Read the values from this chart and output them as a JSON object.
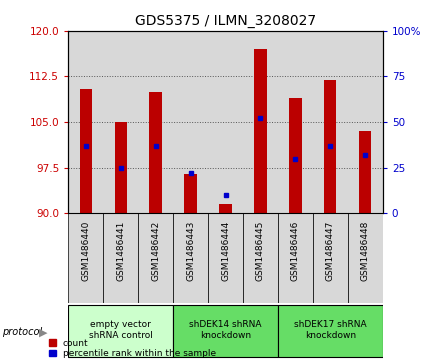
{
  "title": "GDS5375 / ILMN_3208027",
  "samples": [
    "GSM1486440",
    "GSM1486441",
    "GSM1486442",
    "GSM1486443",
    "GSM1486444",
    "GSM1486445",
    "GSM1486446",
    "GSM1486447",
    "GSM1486448"
  ],
  "counts": [
    110.5,
    105.0,
    110.0,
    96.5,
    91.5,
    117.0,
    109.0,
    112.0,
    103.5
  ],
  "percentiles": [
    37,
    25,
    37,
    22,
    10,
    52,
    30,
    37,
    32
  ],
  "ylim_left": [
    90,
    120
  ],
  "ylim_right": [
    0,
    100
  ],
  "yticks_left": [
    90,
    97.5,
    105,
    112.5,
    120
  ],
  "yticks_right": [
    0,
    25,
    50,
    75,
    100
  ],
  "bar_color": "#bb0000",
  "percentile_color": "#0000cc",
  "bar_bottom": 90,
  "bar_width": 0.35,
  "groups": [
    {
      "label": "empty vector\nshRNA control",
      "start": 0,
      "end": 2,
      "color": "#ccffcc"
    },
    {
      "label": "shDEK14 shRNA\nknockdown",
      "start": 3,
      "end": 5,
      "color": "#66dd66"
    },
    {
      "label": "shDEK17 shRNA\nknockdown",
      "start": 6,
      "end": 8,
      "color": "#66dd66"
    }
  ],
  "legend_items": [
    {
      "label": "count",
      "color": "#bb0000"
    },
    {
      "label": "percentile rank within the sample",
      "color": "#0000cc"
    }
  ],
  "background_color": "#ffffff",
  "col_bg_color": "#d8d8d8",
  "plot_bg_color": "#ffffff",
  "grid_color": "#555555",
  "left_tick_color": "#cc0000",
  "right_tick_color": "#0000cc"
}
